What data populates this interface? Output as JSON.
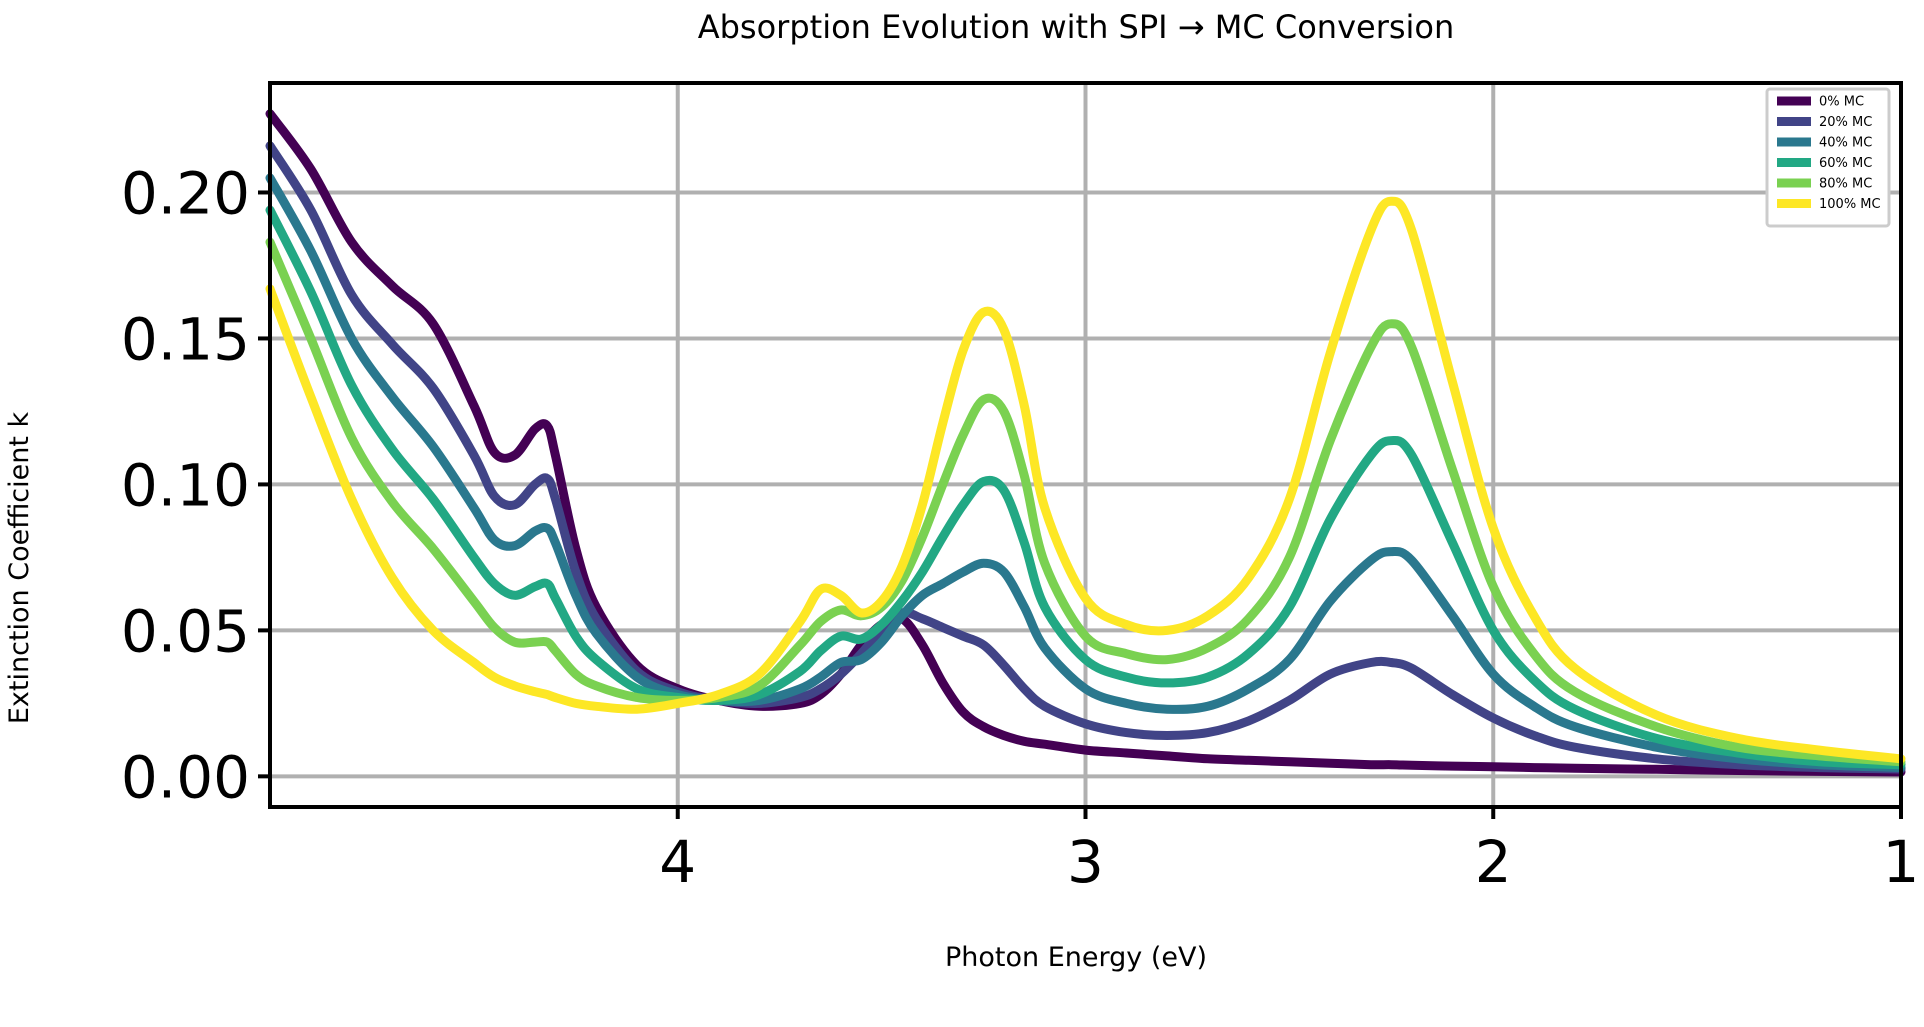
{
  "chart_data": {
    "type": "line",
    "title": "Absorption Evolution with SPI → MC Conversion",
    "xlabel": "Photon Energy (eV)",
    "ylabel": "Extinction Coefficient k",
    "xlim": [
      5.0,
      1.0
    ],
    "ylim": [
      -0.0105,
      0.2375
    ],
    "x_inverted": true,
    "x_ticks": [
      4,
      3,
      2,
      1
    ],
    "x_tick_labels": [
      "4",
      "3",
      "2",
      "1"
    ],
    "y_ticks": [
      0.0,
      0.05,
      0.1,
      0.15,
      0.2
    ],
    "y_tick_labels": [
      "0.00",
      "0.05",
      "0.10",
      "0.15",
      "0.20"
    ],
    "grid": true,
    "legend_position": "top-right",
    "x": [
      5.0,
      4.9,
      4.8,
      4.7,
      4.6,
      4.5,
      4.45,
      4.4,
      4.35,
      4.32,
      4.3,
      4.25,
      4.2,
      4.1,
      4.0,
      3.9,
      3.8,
      3.7,
      3.65,
      3.6,
      3.55,
      3.5,
      3.45,
      3.4,
      3.35,
      3.3,
      3.25,
      3.2,
      3.15,
      3.1,
      3.0,
      2.9,
      2.8,
      2.7,
      2.6,
      2.5,
      2.4,
      2.3,
      2.25,
      2.2,
      2.1,
      2.0,
      1.9,
      1.8,
      1.6,
      1.4,
      1.2,
      1.0
    ],
    "series": [
      {
        "name": "0% MC",
        "color": "#440154",
        "values": [
          0.227,
          0.208,
          0.183,
          0.168,
          0.155,
          0.127,
          0.111,
          0.11,
          0.119,
          0.12,
          0.11,
          0.078,
          0.058,
          0.038,
          0.03,
          0.026,
          0.024,
          0.025,
          0.028,
          0.035,
          0.045,
          0.052,
          0.054,
          0.045,
          0.032,
          0.022,
          0.017,
          0.014,
          0.012,
          0.011,
          0.009,
          0.008,
          0.007,
          0.006,
          0.0055,
          0.005,
          0.0045,
          0.004,
          0.004,
          0.0038,
          0.0035,
          0.0033,
          0.003,
          0.0028,
          0.0024,
          0.002,
          0.0017,
          0.0015
        ]
      },
      {
        "name": "20% MC",
        "color": "#414487",
        "values": [
          0.216,
          0.194,
          0.165,
          0.148,
          0.133,
          0.11,
          0.096,
          0.093,
          0.1,
          0.102,
          0.095,
          0.07,
          0.054,
          0.036,
          0.029,
          0.026,
          0.025,
          0.027,
          0.03,
          0.035,
          0.042,
          0.05,
          0.056,
          0.054,
          0.051,
          0.048,
          0.045,
          0.038,
          0.03,
          0.024,
          0.018,
          0.015,
          0.014,
          0.015,
          0.019,
          0.026,
          0.035,
          0.039,
          0.039,
          0.037,
          0.028,
          0.02,
          0.014,
          0.01,
          0.006,
          0.004,
          0.003,
          0.0025
        ]
      },
      {
        "name": "40% MC",
        "color": "#2a788e",
        "values": [
          0.205,
          0.18,
          0.15,
          0.13,
          0.113,
          0.092,
          0.081,
          0.079,
          0.084,
          0.085,
          0.08,
          0.062,
          0.049,
          0.034,
          0.028,
          0.026,
          0.026,
          0.03,
          0.034,
          0.039,
          0.04,
          0.046,
          0.055,
          0.062,
          0.066,
          0.07,
          0.073,
          0.07,
          0.058,
          0.044,
          0.03,
          0.025,
          0.023,
          0.024,
          0.03,
          0.04,
          0.06,
          0.074,
          0.077,
          0.074,
          0.055,
          0.035,
          0.024,
          0.017,
          0.01,
          0.006,
          0.004,
          0.003
        ]
      },
      {
        "name": "60% MC",
        "color": "#22a884",
        "values": [
          0.194,
          0.166,
          0.134,
          0.112,
          0.095,
          0.075,
          0.066,
          0.062,
          0.065,
          0.066,
          0.061,
          0.048,
          0.04,
          0.03,
          0.027,
          0.026,
          0.028,
          0.036,
          0.043,
          0.048,
          0.047,
          0.052,
          0.06,
          0.07,
          0.082,
          0.093,
          0.101,
          0.098,
          0.08,
          0.058,
          0.04,
          0.034,
          0.032,
          0.034,
          0.042,
          0.058,
          0.088,
          0.11,
          0.115,
          0.11,
          0.08,
          0.05,
          0.033,
          0.023,
          0.013,
          0.008,
          0.005,
          0.004
        ]
      },
      {
        "name": "80% MC",
        "color": "#7ad151",
        "values": [
          0.183,
          0.15,
          0.116,
          0.094,
          0.078,
          0.06,
          0.051,
          0.046,
          0.046,
          0.046,
          0.043,
          0.035,
          0.031,
          0.027,
          0.026,
          0.027,
          0.031,
          0.045,
          0.053,
          0.057,
          0.055,
          0.058,
          0.067,
          0.082,
          0.1,
          0.117,
          0.129,
          0.125,
          0.103,
          0.073,
          0.048,
          0.042,
          0.04,
          0.044,
          0.054,
          0.075,
          0.115,
          0.147,
          0.155,
          0.147,
          0.105,
          0.065,
          0.042,
          0.029,
          0.017,
          0.01,
          0.007,
          0.005
        ]
      },
      {
        "name": "100% MC",
        "color": "#fde725",
        "values": [
          0.167,
          0.13,
          0.095,
          0.068,
          0.05,
          0.039,
          0.034,
          0.031,
          0.029,
          0.028,
          0.027,
          0.025,
          0.024,
          0.023,
          0.025,
          0.028,
          0.035,
          0.053,
          0.064,
          0.062,
          0.056,
          0.06,
          0.072,
          0.093,
          0.121,
          0.146,
          0.159,
          0.153,
          0.127,
          0.092,
          0.061,
          0.052,
          0.05,
          0.055,
          0.068,
          0.095,
          0.145,
          0.187,
          0.197,
          0.187,
          0.135,
          0.085,
          0.055,
          0.037,
          0.021,
          0.013,
          0.009,
          0.006
        ]
      }
    ]
  }
}
